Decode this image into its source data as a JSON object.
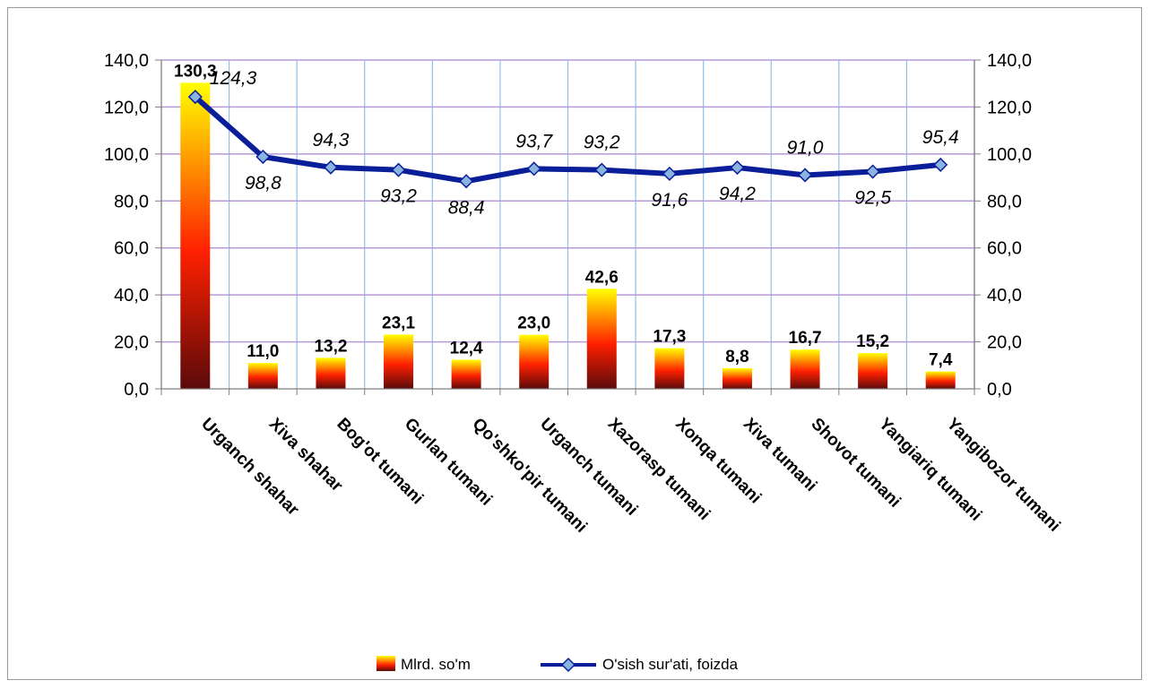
{
  "chart_data": {
    "type": "bar",
    "categories": [
      "Urganch shahar",
      "Xiva shahar",
      "Bog'ot tumani",
      "Gurlan tumani",
      "Qo'shko'pir tumani",
      "Urganch tumani",
      "Xazorasp tumani",
      "Xonqa tumani",
      "Xiva tumani",
      "Shovot tumani",
      "Yangiariq tumani",
      "Yangibozor tumani"
    ],
    "series": [
      {
        "name": "Mlrd. so'm",
        "type": "bar",
        "values": [
          130.3,
          11.0,
          13.2,
          23.1,
          12.4,
          23.0,
          42.6,
          17.3,
          8.8,
          16.7,
          15.2,
          7.4
        ],
        "labels": [
          "130,3",
          "11,0",
          "13,2",
          "23,1",
          "12,4",
          "23,0",
          "42,6",
          "17,3",
          "8,8",
          "16,7",
          "15,2",
          "7,4"
        ]
      },
      {
        "name": "O'sish sur'ati, foizda",
        "type": "line",
        "values": [
          124.3,
          98.8,
          94.3,
          93.2,
          88.4,
          93.7,
          93.2,
          91.6,
          94.2,
          91.0,
          92.5,
          95.4
        ],
        "labels": [
          "124,3",
          "98,8",
          "94,3",
          "93,2",
          "88,4",
          "93,7",
          "93,2",
          "91,6",
          "94,2",
          "91,0",
          "92,5",
          "95,4"
        ]
      }
    ],
    "ylim": [
      0,
      140
    ],
    "y2lim": [
      0,
      140
    ],
    "yticks": [
      "0,0",
      "20,0",
      "40,0",
      "60,0",
      "80,0",
      "100,0",
      "120,0",
      "140,0"
    ],
    "grid": true,
    "legend": "bottom",
    "colors": {
      "bar_top": "#ffff00",
      "bar_mid": "#ff2000",
      "bar_bottom": "#5a0a0a",
      "line": "#0a1e9a",
      "marker": "#8ab4e0",
      "hgrid": "#b79ad8",
      "vgrid": "#8fc0ea"
    }
  }
}
